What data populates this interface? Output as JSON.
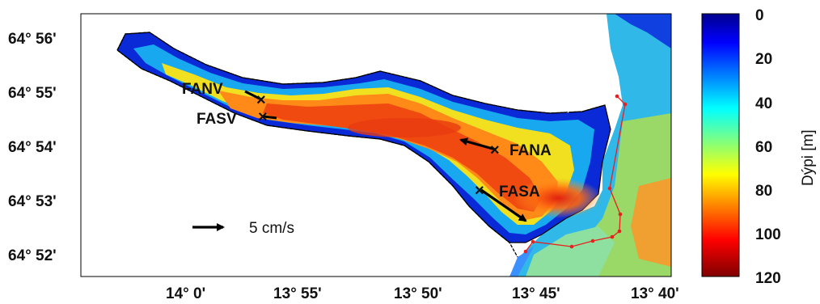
{
  "map": {
    "x_ticks": [
      "14° 0'",
      "13° 55'",
      "13° 50'",
      "13° 45'",
      "13° 40'"
    ],
    "y_ticks": [
      "64° 56'",
      "64° 55'",
      "64° 54'",
      "64° 53'",
      "64° 52'"
    ],
    "scale_label": "5 cm/s",
    "stations": [
      {
        "id": "FANV",
        "label": "FANV"
      },
      {
        "id": "FASV",
        "label": "FASV"
      },
      {
        "id": "FANA",
        "label": "FANA"
      },
      {
        "id": "FASA",
        "label": "FASA"
      }
    ]
  },
  "colorbar": {
    "title": "Dýpi [m]",
    "ticks": [
      "0",
      "20",
      "40",
      "60",
      "80",
      "100",
      "120"
    ],
    "range": [
      0,
      120
    ],
    "colormap": "jet"
  },
  "colors": {
    "land": "#ffffff",
    "coastline": "#000000",
    "transect": "#e8201e",
    "arrow": "#000000"
  }
}
